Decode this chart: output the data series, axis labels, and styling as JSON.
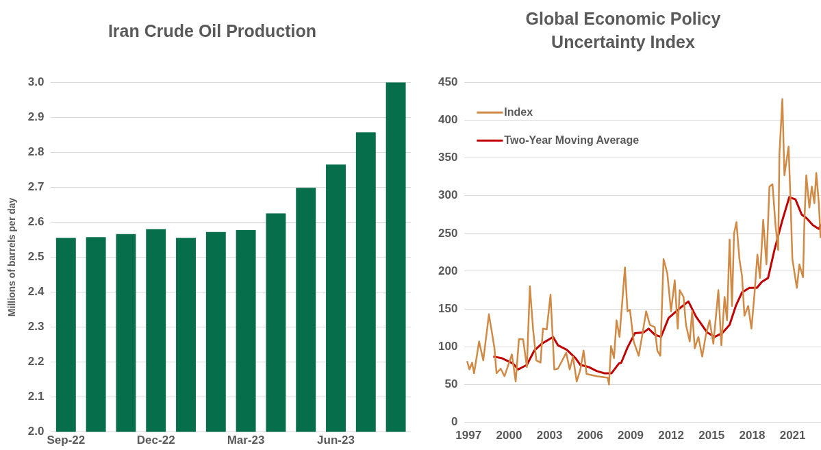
{
  "chart_data": [
    {
      "type": "bar",
      "title": "Iran Crude Oil Production",
      "ylabel": "Millions of barrels per day",
      "categories": [
        "Sep-22",
        null,
        null,
        "Dec-22",
        null,
        null,
        "Mar-23",
        null,
        null,
        "Jun-23",
        null,
        null
      ],
      "values": [
        2.555,
        2.557,
        2.566,
        2.58,
        2.555,
        2.572,
        2.577,
        2.625,
        2.698,
        2.765,
        2.857,
        3.0
      ],
      "color": "#066e4b",
      "ylim": [
        2.0,
        3.0
      ],
      "yticks": [
        {
          "value": 2.0,
          "label": "2.0"
        },
        {
          "value": 2.1,
          "label": "2.1"
        },
        {
          "value": 2.2,
          "label": "2.2"
        },
        {
          "value": 2.3,
          "label": "2.3"
        },
        {
          "value": 2.4,
          "label": "2.4"
        },
        {
          "value": 2.5,
          "label": "2.5"
        },
        {
          "value": 2.6,
          "label": "2.6"
        },
        {
          "value": 2.7,
          "label": "2.7"
        },
        {
          "value": 2.8,
          "label": "2.8"
        },
        {
          "value": 2.9,
          "label": "2.9"
        },
        {
          "value": 3.0,
          "label": "3.0"
        }
      ],
      "grid": "y"
    },
    {
      "type": "line",
      "title": "Global Economic Policy Uncertainty Index",
      "legend": "top left",
      "marker": "none",
      "grid": "y",
      "xlim": [
        1996.7,
        2023.1
      ],
      "xticks": [
        1997,
        2000,
        2003,
        2006,
        2009,
        2012,
        2015,
        2018,
        2021
      ],
      "ylim": [
        0,
        450
      ],
      "yticks": [
        0,
        50,
        100,
        150,
        200,
        250,
        300,
        350,
        400,
        450
      ],
      "series": [
        {
          "name": "Index",
          "color": "#d08a45",
          "x": [
            1996.89,
            1997.07,
            1997.26,
            1997.41,
            1997.78,
            1998.09,
            1998.51,
            1998.92,
            1999.07,
            1999.38,
            1999.66,
            2000.21,
            2000.49,
            2000.73,
            2001.04,
            2001.32,
            2001.54,
            2001.78,
            2002.02,
            2002.33,
            2002.51,
            2002.79,
            2003.07,
            2003.35,
            2003.62,
            2004.23,
            2004.49,
            2004.73,
            2005.01,
            2005.28,
            2005.52,
            2005.74,
            2006.48,
            2007.31,
            2007.4,
            2007.55,
            2007.77,
            2007.96,
            2008.18,
            2008.58,
            2008.77,
            2008.95,
            2009.23,
            2009.6,
            2009.87,
            2010.15,
            2010.43,
            2010.79,
            2010.98,
            2011.2,
            2011.44,
            2011.72,
            2011.99,
            2012.27,
            2012.49,
            2012.64,
            2012.92,
            2013.1,
            2013.38,
            2013.56,
            2013.75,
            2014.02,
            2014.3,
            2014.58,
            2014.85,
            2015.13,
            2015.5,
            2015.72,
            2015.96,
            2016.14,
            2016.33,
            2016.51,
            2016.66,
            2016.84,
            2017.06,
            2017.25,
            2017.43,
            2017.71,
            2017.95,
            2018.17,
            2018.39,
            2018.58,
            2018.82,
            2019.06,
            2019.28,
            2019.51,
            2019.74,
            2019.93,
            2020.02,
            2020.24,
            2020.39,
            2020.7,
            2020.85,
            2020.98,
            2021.31,
            2021.5,
            2021.77,
            2021.87,
            2022.01,
            2022.24,
            2022.42,
            2022.61,
            2022.75,
            2022.94,
            2023.07
          ],
          "values": [
            81,
            70,
            79,
            65,
            107,
            82,
            143,
            98,
            65,
            71,
            61,
            90,
            54,
            110,
            110,
            73,
            180,
            123,
            82,
            79,
            124,
            123,
            169,
            70,
            71,
            92,
            70,
            87,
            54,
            70,
            95,
            64,
            61,
            59,
            50,
            101,
            85,
            135,
            113,
            205,
            147,
            149,
            107,
            88,
            116,
            147,
            129,
            126,
            95,
            88,
            216,
            197,
            147,
            188,
            124,
            175,
            166,
            129,
            107,
            147,
            98,
            113,
            87,
            116,
            135,
            104,
            175,
            102,
            166,
            135,
            242,
            154,
            250,
            265,
            216,
            194,
            141,
            154,
            124,
            169,
            222,
            191,
            268,
            209,
            312,
            315,
            259,
            228,
            355,
            428,
            327,
            365,
            290,
            216,
            178,
            209,
            192,
            265,
            327,
            284,
            312,
            290,
            330,
            290,
            244
          ]
        },
        {
          "name": "Two-Year Moving Average",
          "color": "#c00000",
          "x": [
            1998.83,
            1999.45,
            2000.29,
            2000.67,
            2001.32,
            2001.87,
            2002.42,
            2003.26,
            2003.62,
            2004.27,
            2004.92,
            2005.28,
            2005.93,
            2006.48,
            2007.04,
            2007.59,
            2008.14,
            2008.31,
            2008.77,
            2009.32,
            2009.97,
            2010.33,
            2010.79,
            2011.25,
            2011.81,
            2012.64,
            2013.28,
            2013.84,
            2014.67,
            2015.22,
            2015.78,
            2016.33,
            2016.79,
            2017.25,
            2017.8,
            2018.35,
            2018.72,
            2019.18,
            2019.65,
            2020.2,
            2020.75,
            2021.21,
            2021.67,
            2022.04,
            2022.5,
            2022.94,
            2023.1
          ],
          "values": [
            87,
            85,
            78,
            70,
            76,
            95,
            104,
            113,
            102,
            96,
            85,
            76,
            73,
            68,
            65,
            65,
            78,
            79,
            99,
            118,
            119,
            124,
            116,
            113,
            138,
            151,
            160,
            140,
            119,
            113,
            118,
            129,
            154,
            172,
            178,
            178,
            186,
            191,
            228,
            265,
            298,
            295,
            275,
            270,
            261,
            256,
            262
          ]
        }
      ]
    }
  ]
}
